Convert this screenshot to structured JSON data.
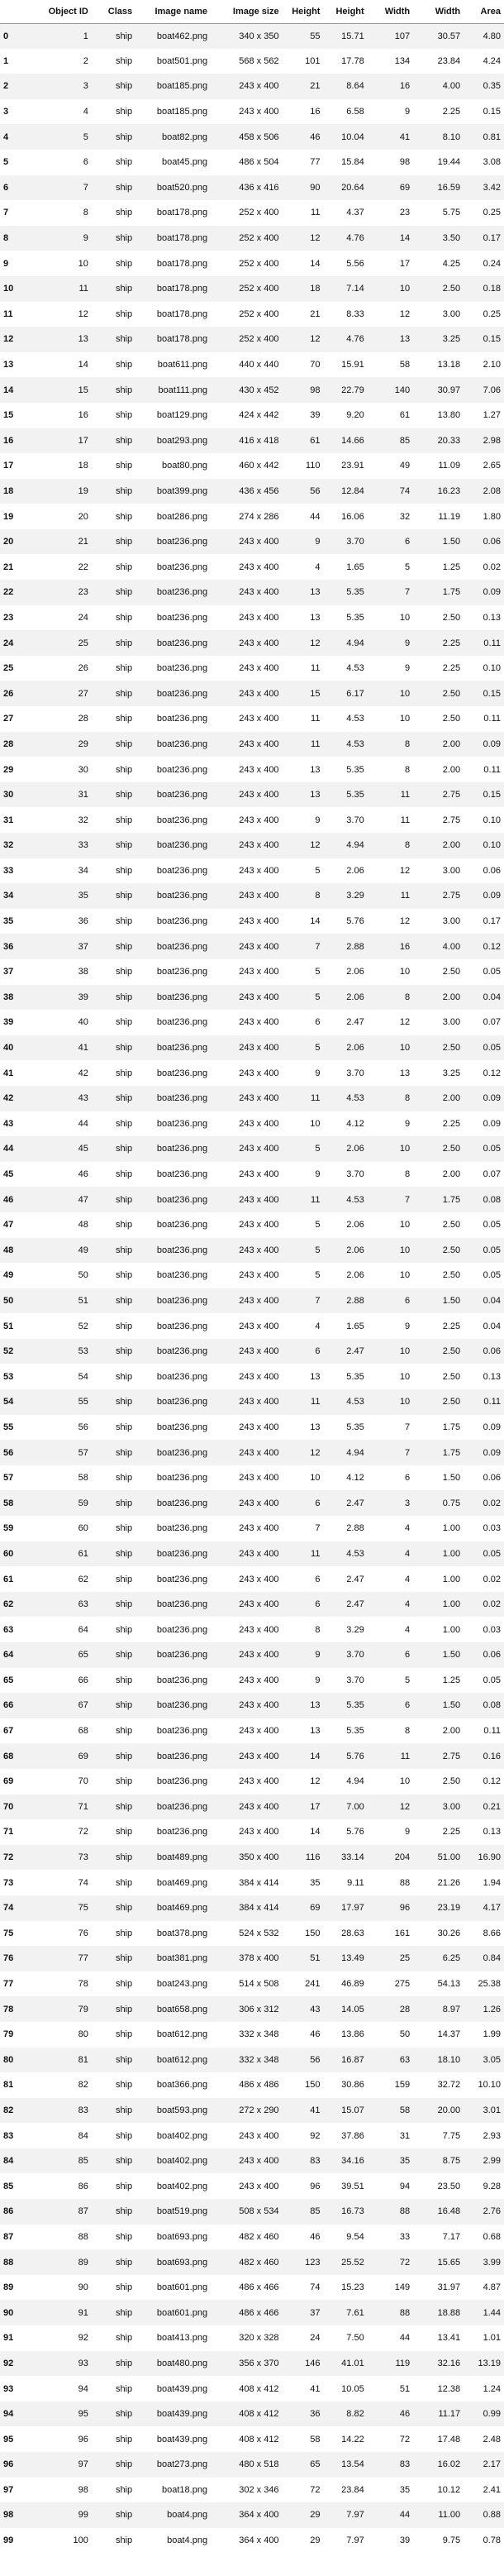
{
  "columns": [
    "",
    "Object ID",
    "Class",
    "Image name",
    "Image size",
    "Height",
    "Height",
    "Width",
    "Width",
    "Area"
  ],
  "rows": [
    [
      "0",
      "1",
      "ship",
      "boat462.png",
      "340 x 350",
      "55",
      "15.71",
      "107",
      "30.57",
      "4.80"
    ],
    [
      "1",
      "2",
      "ship",
      "boat501.png",
      "568 x 562",
      "101",
      "17.78",
      "134",
      "23.84",
      "4.24"
    ],
    [
      "2",
      "3",
      "ship",
      "boat185.png",
      "243 x 400",
      "21",
      "8.64",
      "16",
      "4.00",
      "0.35"
    ],
    [
      "3",
      "4",
      "ship",
      "boat185.png",
      "243 x 400",
      "16",
      "6.58",
      "9",
      "2.25",
      "0.15"
    ],
    [
      "4",
      "5",
      "ship",
      "boat82.png",
      "458 x 506",
      "46",
      "10.04",
      "41",
      "8.10",
      "0.81"
    ],
    [
      "5",
      "6",
      "ship",
      "boat45.png",
      "486 x 504",
      "77",
      "15.84",
      "98",
      "19.44",
      "3.08"
    ],
    [
      "6",
      "7",
      "ship",
      "boat520.png",
      "436 x 416",
      "90",
      "20.64",
      "69",
      "16.59",
      "3.42"
    ],
    [
      "7",
      "8",
      "ship",
      "boat178.png",
      "252 x 400",
      "11",
      "4.37",
      "23",
      "5.75",
      "0.25"
    ],
    [
      "8",
      "9",
      "ship",
      "boat178.png",
      "252 x 400",
      "12",
      "4.76",
      "14",
      "3.50",
      "0.17"
    ],
    [
      "9",
      "10",
      "ship",
      "boat178.png",
      "252 x 400",
      "14",
      "5.56",
      "17",
      "4.25",
      "0.24"
    ],
    [
      "10",
      "11",
      "ship",
      "boat178.png",
      "252 x 400",
      "18",
      "7.14",
      "10",
      "2.50",
      "0.18"
    ],
    [
      "11",
      "12",
      "ship",
      "boat178.png",
      "252 x 400",
      "21",
      "8.33",
      "12",
      "3.00",
      "0.25"
    ],
    [
      "12",
      "13",
      "ship",
      "boat178.png",
      "252 x 400",
      "12",
      "4.76",
      "13",
      "3.25",
      "0.15"
    ],
    [
      "13",
      "14",
      "ship",
      "boat611.png",
      "440 x 440",
      "70",
      "15.91",
      "58",
      "13.18",
      "2.10"
    ],
    [
      "14",
      "15",
      "ship",
      "boat111.png",
      "430 x 452",
      "98",
      "22.79",
      "140",
      "30.97",
      "7.06"
    ],
    [
      "15",
      "16",
      "ship",
      "boat129.png",
      "424 x 442",
      "39",
      "9.20",
      "61",
      "13.80",
      "1.27"
    ],
    [
      "16",
      "17",
      "ship",
      "boat293.png",
      "416 x 418",
      "61",
      "14.66",
      "85",
      "20.33",
      "2.98"
    ],
    [
      "17",
      "18",
      "ship",
      "boat80.png",
      "460 x 442",
      "110",
      "23.91",
      "49",
      "11.09",
      "2.65"
    ],
    [
      "18",
      "19",
      "ship",
      "boat399.png",
      "436 x 456",
      "56",
      "12.84",
      "74",
      "16.23",
      "2.08"
    ],
    [
      "19",
      "20",
      "ship",
      "boat286.png",
      "274 x 286",
      "44",
      "16.06",
      "32",
      "11.19",
      "1.80"
    ],
    [
      "20",
      "21",
      "ship",
      "boat236.png",
      "243 x 400",
      "9",
      "3.70",
      "6",
      "1.50",
      "0.06"
    ],
    [
      "21",
      "22",
      "ship",
      "boat236.png",
      "243 x 400",
      "4",
      "1.65",
      "5",
      "1.25",
      "0.02"
    ],
    [
      "22",
      "23",
      "ship",
      "boat236.png",
      "243 x 400",
      "13",
      "5.35",
      "7",
      "1.75",
      "0.09"
    ],
    [
      "23",
      "24",
      "ship",
      "boat236.png",
      "243 x 400",
      "13",
      "5.35",
      "10",
      "2.50",
      "0.13"
    ],
    [
      "24",
      "25",
      "ship",
      "boat236.png",
      "243 x 400",
      "12",
      "4.94",
      "9",
      "2.25",
      "0.11"
    ],
    [
      "25",
      "26",
      "ship",
      "boat236.png",
      "243 x 400",
      "11",
      "4.53",
      "9",
      "2.25",
      "0.10"
    ],
    [
      "26",
      "27",
      "ship",
      "boat236.png",
      "243 x 400",
      "15",
      "6.17",
      "10",
      "2.50",
      "0.15"
    ],
    [
      "27",
      "28",
      "ship",
      "boat236.png",
      "243 x 400",
      "11",
      "4.53",
      "10",
      "2.50",
      "0.11"
    ],
    [
      "28",
      "29",
      "ship",
      "boat236.png",
      "243 x 400",
      "11",
      "4.53",
      "8",
      "2.00",
      "0.09"
    ],
    [
      "29",
      "30",
      "ship",
      "boat236.png",
      "243 x 400",
      "13",
      "5.35",
      "8",
      "2.00",
      "0.11"
    ],
    [
      "30",
      "31",
      "ship",
      "boat236.png",
      "243 x 400",
      "13",
      "5.35",
      "11",
      "2.75",
      "0.15"
    ],
    [
      "31",
      "32",
      "ship",
      "boat236.png",
      "243 x 400",
      "9",
      "3.70",
      "11",
      "2.75",
      "0.10"
    ],
    [
      "32",
      "33",
      "ship",
      "boat236.png",
      "243 x 400",
      "12",
      "4.94",
      "8",
      "2.00",
      "0.10"
    ],
    [
      "33",
      "34",
      "ship",
      "boat236.png",
      "243 x 400",
      "5",
      "2.06",
      "12",
      "3.00",
      "0.06"
    ],
    [
      "34",
      "35",
      "ship",
      "boat236.png",
      "243 x 400",
      "8",
      "3.29",
      "11",
      "2.75",
      "0.09"
    ],
    [
      "35",
      "36",
      "ship",
      "boat236.png",
      "243 x 400",
      "14",
      "5.76",
      "12",
      "3.00",
      "0.17"
    ],
    [
      "36",
      "37",
      "ship",
      "boat236.png",
      "243 x 400",
      "7",
      "2.88",
      "16",
      "4.00",
      "0.12"
    ],
    [
      "37",
      "38",
      "ship",
      "boat236.png",
      "243 x 400",
      "5",
      "2.06",
      "10",
      "2.50",
      "0.05"
    ],
    [
      "38",
      "39",
      "ship",
      "boat236.png",
      "243 x 400",
      "5",
      "2.06",
      "8",
      "2.00",
      "0.04"
    ],
    [
      "39",
      "40",
      "ship",
      "boat236.png",
      "243 x 400",
      "6",
      "2.47",
      "12",
      "3.00",
      "0.07"
    ],
    [
      "40",
      "41",
      "ship",
      "boat236.png",
      "243 x 400",
      "5",
      "2.06",
      "10",
      "2.50",
      "0.05"
    ],
    [
      "41",
      "42",
      "ship",
      "boat236.png",
      "243 x 400",
      "9",
      "3.70",
      "13",
      "3.25",
      "0.12"
    ],
    [
      "42",
      "43",
      "ship",
      "boat236.png",
      "243 x 400",
      "11",
      "4.53",
      "8",
      "2.00",
      "0.09"
    ],
    [
      "43",
      "44",
      "ship",
      "boat236.png",
      "243 x 400",
      "10",
      "4.12",
      "9",
      "2.25",
      "0.09"
    ],
    [
      "44",
      "45",
      "ship",
      "boat236.png",
      "243 x 400",
      "5",
      "2.06",
      "10",
      "2.50",
      "0.05"
    ],
    [
      "45",
      "46",
      "ship",
      "boat236.png",
      "243 x 400",
      "9",
      "3.70",
      "8",
      "2.00",
      "0.07"
    ],
    [
      "46",
      "47",
      "ship",
      "boat236.png",
      "243 x 400",
      "11",
      "4.53",
      "7",
      "1.75",
      "0.08"
    ],
    [
      "47",
      "48",
      "ship",
      "boat236.png",
      "243 x 400",
      "5",
      "2.06",
      "10",
      "2.50",
      "0.05"
    ],
    [
      "48",
      "49",
      "ship",
      "boat236.png",
      "243 x 400",
      "5",
      "2.06",
      "10",
      "2.50",
      "0.05"
    ],
    [
      "49",
      "50",
      "ship",
      "boat236.png",
      "243 x 400",
      "5",
      "2.06",
      "10",
      "2.50",
      "0.05"
    ],
    [
      "50",
      "51",
      "ship",
      "boat236.png",
      "243 x 400",
      "7",
      "2.88",
      "6",
      "1.50",
      "0.04"
    ],
    [
      "51",
      "52",
      "ship",
      "boat236.png",
      "243 x 400",
      "4",
      "1.65",
      "9",
      "2.25",
      "0.04"
    ],
    [
      "52",
      "53",
      "ship",
      "boat236.png",
      "243 x 400",
      "6",
      "2.47",
      "10",
      "2.50",
      "0.06"
    ],
    [
      "53",
      "54",
      "ship",
      "boat236.png",
      "243 x 400",
      "13",
      "5.35",
      "10",
      "2.50",
      "0.13"
    ],
    [
      "54",
      "55",
      "ship",
      "boat236.png",
      "243 x 400",
      "11",
      "4.53",
      "10",
      "2.50",
      "0.11"
    ],
    [
      "55",
      "56",
      "ship",
      "boat236.png",
      "243 x 400",
      "13",
      "5.35",
      "7",
      "1.75",
      "0.09"
    ],
    [
      "56",
      "57",
      "ship",
      "boat236.png",
      "243 x 400",
      "12",
      "4.94",
      "7",
      "1.75",
      "0.09"
    ],
    [
      "57",
      "58",
      "ship",
      "boat236.png",
      "243 x 400",
      "10",
      "4.12",
      "6",
      "1.50",
      "0.06"
    ],
    [
      "58",
      "59",
      "ship",
      "boat236.png",
      "243 x 400",
      "6",
      "2.47",
      "3",
      "0.75",
      "0.02"
    ],
    [
      "59",
      "60",
      "ship",
      "boat236.png",
      "243 x 400",
      "7",
      "2.88",
      "4",
      "1.00",
      "0.03"
    ],
    [
      "60",
      "61",
      "ship",
      "boat236.png",
      "243 x 400",
      "11",
      "4.53",
      "4",
      "1.00",
      "0.05"
    ],
    [
      "61",
      "62",
      "ship",
      "boat236.png",
      "243 x 400",
      "6",
      "2.47",
      "4",
      "1.00",
      "0.02"
    ],
    [
      "62",
      "63",
      "ship",
      "boat236.png",
      "243 x 400",
      "6",
      "2.47",
      "4",
      "1.00",
      "0.02"
    ],
    [
      "63",
      "64",
      "ship",
      "boat236.png",
      "243 x 400",
      "8",
      "3.29",
      "4",
      "1.00",
      "0.03"
    ],
    [
      "64",
      "65",
      "ship",
      "boat236.png",
      "243 x 400",
      "9",
      "3.70",
      "6",
      "1.50",
      "0.06"
    ],
    [
      "65",
      "66",
      "ship",
      "boat236.png",
      "243 x 400",
      "9",
      "3.70",
      "5",
      "1.25",
      "0.05"
    ],
    [
      "66",
      "67",
      "ship",
      "boat236.png",
      "243 x 400",
      "13",
      "5.35",
      "6",
      "1.50",
      "0.08"
    ],
    [
      "67",
      "68",
      "ship",
      "boat236.png",
      "243 x 400",
      "13",
      "5.35",
      "8",
      "2.00",
      "0.11"
    ],
    [
      "68",
      "69",
      "ship",
      "boat236.png",
      "243 x 400",
      "14",
      "5.76",
      "11",
      "2.75",
      "0.16"
    ],
    [
      "69",
      "70",
      "ship",
      "boat236.png",
      "243 x 400",
      "12",
      "4.94",
      "10",
      "2.50",
      "0.12"
    ],
    [
      "70",
      "71",
      "ship",
      "boat236.png",
      "243 x 400",
      "17",
      "7.00",
      "12",
      "3.00",
      "0.21"
    ],
    [
      "71",
      "72",
      "ship",
      "boat236.png",
      "243 x 400",
      "14",
      "5.76",
      "9",
      "2.25",
      "0.13"
    ],
    [
      "72",
      "73",
      "ship",
      "boat489.png",
      "350 x 400",
      "116",
      "33.14",
      "204",
      "51.00",
      "16.90"
    ],
    [
      "73",
      "74",
      "ship",
      "boat469.png",
      "384 x 414",
      "35",
      "9.11",
      "88",
      "21.26",
      "1.94"
    ],
    [
      "74",
      "75",
      "ship",
      "boat469.png",
      "384 x 414",
      "69",
      "17.97",
      "96",
      "23.19",
      "4.17"
    ],
    [
      "75",
      "76",
      "ship",
      "boat378.png",
      "524 x 532",
      "150",
      "28.63",
      "161",
      "30.26",
      "8.66"
    ],
    [
      "76",
      "77",
      "ship",
      "boat381.png",
      "378 x 400",
      "51",
      "13.49",
      "25",
      "6.25",
      "0.84"
    ],
    [
      "77",
      "78",
      "ship",
      "boat243.png",
      "514 x 508",
      "241",
      "46.89",
      "275",
      "54.13",
      "25.38"
    ],
    [
      "78",
      "79",
      "ship",
      "boat658.png",
      "306 x 312",
      "43",
      "14.05",
      "28",
      "8.97",
      "1.26"
    ],
    [
      "79",
      "80",
      "ship",
      "boat612.png",
      "332 x 348",
      "46",
      "13.86",
      "50",
      "14.37",
      "1.99"
    ],
    [
      "80",
      "81",
      "ship",
      "boat612.png",
      "332 x 348",
      "56",
      "16.87",
      "63",
      "18.10",
      "3.05"
    ],
    [
      "81",
      "82",
      "ship",
      "boat366.png",
      "486 x 486",
      "150",
      "30.86",
      "159",
      "32.72",
      "10.10"
    ],
    [
      "82",
      "83",
      "ship",
      "boat593.png",
      "272 x 290",
      "41",
      "15.07",
      "58",
      "20.00",
      "3.01"
    ],
    [
      "83",
      "84",
      "ship",
      "boat402.png",
      "243 x 400",
      "92",
      "37.86",
      "31",
      "7.75",
      "2.93"
    ],
    [
      "84",
      "85",
      "ship",
      "boat402.png",
      "243 x 400",
      "83",
      "34.16",
      "35",
      "8.75",
      "2.99"
    ],
    [
      "85",
      "86",
      "ship",
      "boat402.png",
      "243 x 400",
      "96",
      "39.51",
      "94",
      "23.50",
      "9.28"
    ],
    [
      "86",
      "87",
      "ship",
      "boat519.png",
      "508 x 534",
      "85",
      "16.73",
      "88",
      "16.48",
      "2.76"
    ],
    [
      "87",
      "88",
      "ship",
      "boat693.png",
      "482 x 460",
      "46",
      "9.54",
      "33",
      "7.17",
      "0.68"
    ],
    [
      "88",
      "89",
      "ship",
      "boat693.png",
      "482 x 460",
      "123",
      "25.52",
      "72",
      "15.65",
      "3.99"
    ],
    [
      "89",
      "90",
      "ship",
      "boat601.png",
      "486 x 466",
      "74",
      "15.23",
      "149",
      "31.97",
      "4.87"
    ],
    [
      "90",
      "91",
      "ship",
      "boat601.png",
      "486 x 466",
      "37",
      "7.61",
      "88",
      "18.88",
      "1.44"
    ],
    [
      "91",
      "92",
      "ship",
      "boat413.png",
      "320 x 328",
      "24",
      "7.50",
      "44",
      "13.41",
      "1.01"
    ],
    [
      "92",
      "93",
      "ship",
      "boat480.png",
      "356 x 370",
      "146",
      "41.01",
      "119",
      "32.16",
      "13.19"
    ],
    [
      "93",
      "94",
      "ship",
      "boat439.png",
      "408 x 412",
      "41",
      "10.05",
      "51",
      "12.38",
      "1.24"
    ],
    [
      "94",
      "95",
      "ship",
      "boat439.png",
      "408 x 412",
      "36",
      "8.82",
      "46",
      "11.17",
      "0.99"
    ],
    [
      "95",
      "96",
      "ship",
      "boat439.png",
      "408 x 412",
      "58",
      "14.22",
      "72",
      "17.48",
      "2.48"
    ],
    [
      "96",
      "97",
      "ship",
      "boat273.png",
      "480 x 518",
      "65",
      "13.54",
      "83",
      "16.02",
      "2.17"
    ],
    [
      "97",
      "98",
      "ship",
      "boat18.png",
      "302 x 346",
      "72",
      "23.84",
      "35",
      "10.12",
      "2.41"
    ],
    [
      "98",
      "99",
      "ship",
      "boat4.png",
      "364 x 400",
      "29",
      "7.97",
      "44",
      "11.00",
      "0.88"
    ],
    [
      "99",
      "100",
      "ship",
      "boat4.png",
      "364 x 400",
      "29",
      "7.97",
      "39",
      "9.75",
      "0.78"
    ]
  ]
}
